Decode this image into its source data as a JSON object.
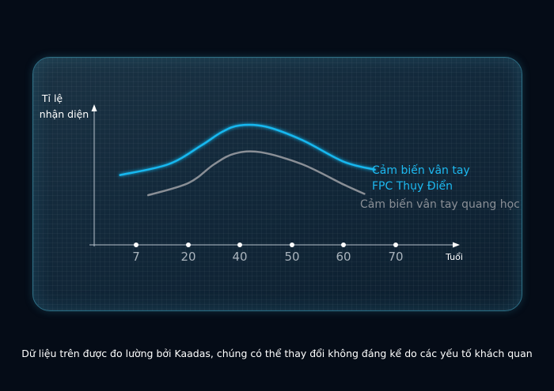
{
  "chart_data": {
    "type": "line",
    "ylabel_lines": [
      "Tỉ lệ",
      "nhận diện"
    ],
    "xlabel": "Tuổi",
    "x_ticks": [
      7,
      20,
      40,
      50,
      60,
      70
    ],
    "series": [
      {
        "name_lines": [
          "Cảm biến vân tay",
          "FPC Thụy Điển"
        ],
        "color": "#19b8f0",
        "points": [
          [
            3,
            0.52
          ],
          [
            15,
            0.6
          ],
          [
            25,
            0.74
          ],
          [
            33,
            0.84
          ],
          [
            40,
            0.89
          ],
          [
            45,
            0.88
          ],
          [
            52,
            0.78
          ],
          [
            60,
            0.62
          ],
          [
            66,
            0.56
          ]
        ]
      },
      {
        "name_lines": [
          "Cảm biến vân tay quang học"
        ],
        "color": "#8a8f96",
        "points": [
          [
            10,
            0.37
          ],
          [
            20,
            0.46
          ],
          [
            30,
            0.6
          ],
          [
            38,
            0.68
          ],
          [
            44,
            0.69
          ],
          [
            52,
            0.6
          ],
          [
            60,
            0.45
          ],
          [
            64,
            0.38
          ]
        ]
      }
    ]
  },
  "footer": {
    "note": "Dữ liệu trên được đo lường bởi Kaadas, chúng có thể thay đổi không đáng kể do các yếu tố khách quan"
  }
}
